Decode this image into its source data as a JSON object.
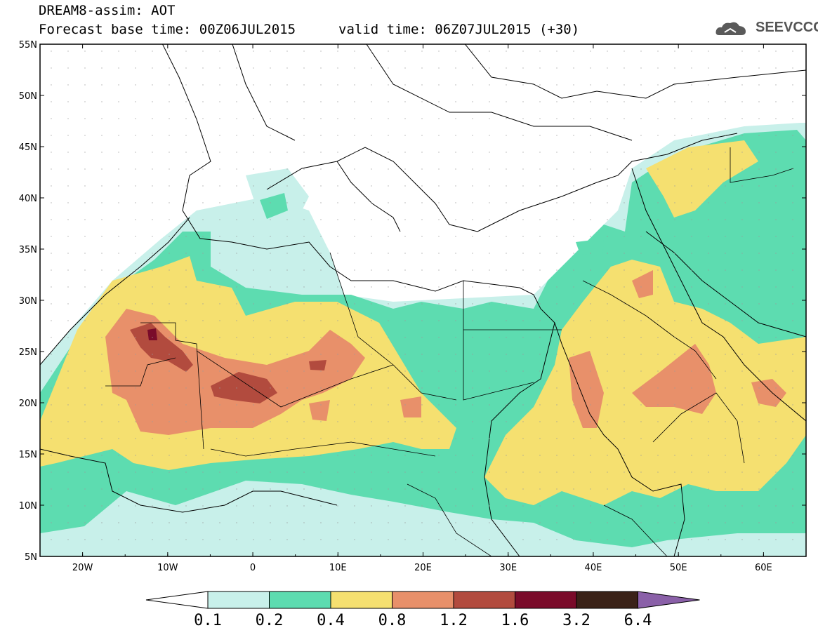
{
  "header": {
    "title": "DREAM8-assim: AOT",
    "base_time": "Forecast base time: 00Z06JUL2015",
    "valid_time": "valid time: 06Z07JUL2015 (+30)",
    "logo": "SEEVCCC"
  },
  "map": {
    "lon_range": [
      -25,
      65
    ],
    "lat_range": [
      5,
      55
    ],
    "lat_labels": [
      "55N",
      "50N",
      "45N",
      "40N",
      "35N",
      "30N",
      "25N",
      "20N",
      "15N",
      "10N",
      "5N"
    ],
    "lon_labels": [
      "20W",
      "10W",
      "0",
      "10E",
      "20E",
      "30E",
      "40E",
      "50E",
      "60E"
    ],
    "field": "Aerosol optical thickness (dust)"
  },
  "colorbar": {
    "labels": [
      "0.1",
      "0.2",
      "0.4",
      "0.8",
      "1.2",
      "1.6",
      "3.2",
      "6.4"
    ],
    "colors": [
      "#ffffff",
      "#c8f0ea",
      "#5ddcb0",
      "#f5e070",
      "#e8906a",
      "#b24b3e",
      "#7a0b2a",
      "#3a2218",
      "#8a60a8"
    ]
  },
  "colors": {
    "c1": "#c8f0ea",
    "c2": "#5ddcb0",
    "c3": "#f5e070",
    "c4": "#e8906a",
    "c5": "#b24b3e",
    "c6": "#7a0b2a"
  }
}
